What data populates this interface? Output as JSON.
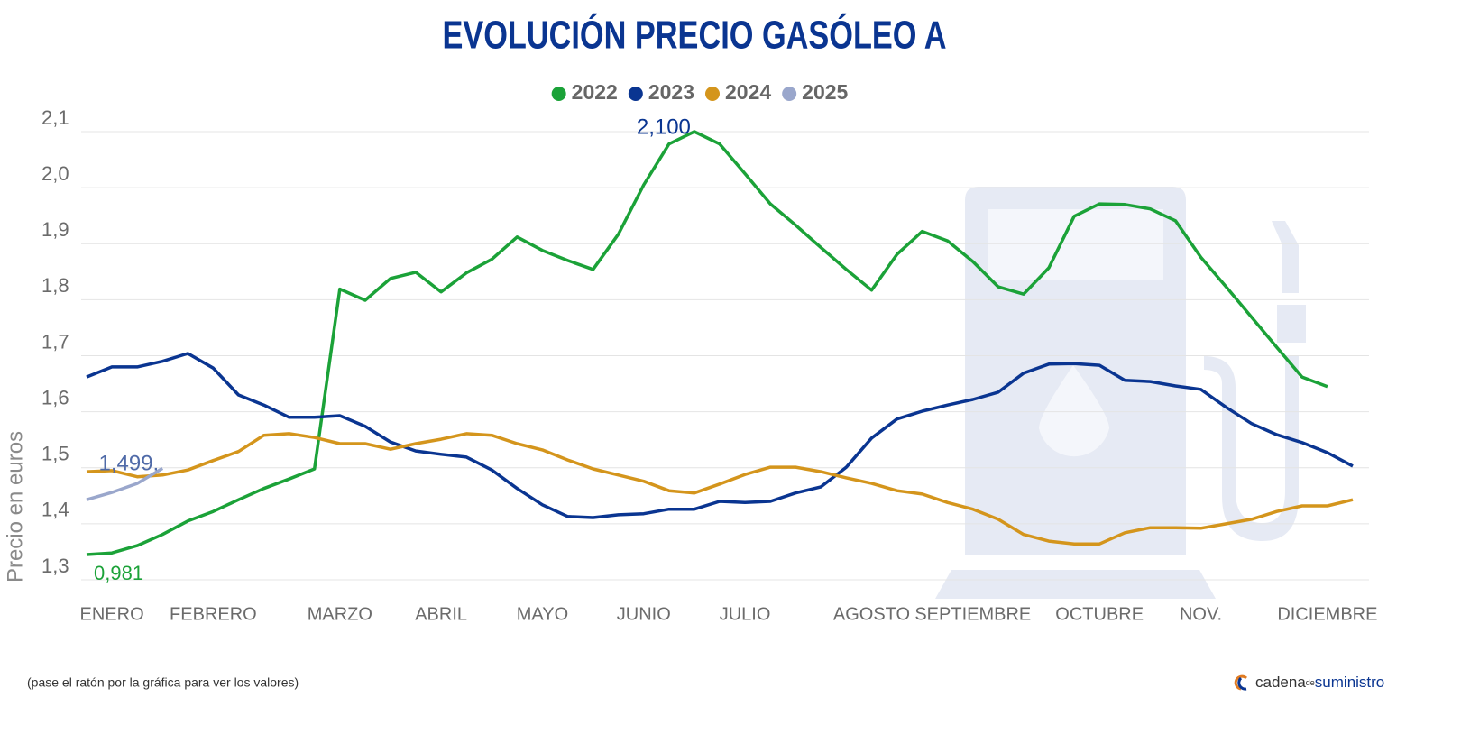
{
  "chart_data": {
    "type": "line",
    "title": "EVOLUCIÓN PRECIO GASÓLEO A",
    "y_label": "Precio en euros",
    "footnote": "(pase el ratón por la gráfica para ver los valores)",
    "brand": [
      "cadena",
      "de",
      "suministro"
    ],
    "notes": [
      "0,981"
    ],
    "categories": [
      null,
      "ENERO",
      null,
      null,
      null,
      "FEBRERO",
      null,
      null,
      null,
      null,
      "MARZO",
      null,
      null,
      null,
      "ABRIL",
      null,
      null,
      null,
      "MAYO",
      null,
      null,
      null,
      "JUNIO",
      null,
      null,
      null,
      "JULIO",
      null,
      null,
      null,
      null,
      "AGOSTO",
      null,
      null,
      null,
      "SEPTIEMBRE",
      null,
      null,
      null,
      null,
      "OCTUBRE",
      null,
      null,
      null,
      "NOV.",
      null,
      null,
      null,
      null,
      "DICIEMBRE",
      null
    ],
    "ylim": [
      1.3,
      2.1
    ],
    "yticks": [
      {
        "value": 1.3,
        "label": "1,3"
      },
      {
        "value": 1.4,
        "label": "1,4"
      },
      {
        "value": 1.5,
        "label": "1,5"
      },
      {
        "value": 1.6,
        "label": "1,6"
      },
      {
        "value": 1.7,
        "label": "1,7"
      },
      {
        "value": 1.8,
        "label": "1,8"
      },
      {
        "value": 1.9,
        "label": "1,9"
      },
      {
        "value": 2.0,
        "label": "2,0"
      },
      {
        "value": 2.1,
        "label": "2,1"
      }
    ],
    "grid": true,
    "series": [
      {
        "name": "2022",
        "color": "#1ba238",
        "values": [
          1.345,
          1.348,
          1.361,
          1.381,
          1.405,
          1.422,
          1.443,
          1.463,
          1.48,
          1.498,
          1.819,
          1.799,
          1.838,
          1.849,
          1.814,
          1.848,
          1.872,
          1.912,
          1.888,
          1.87,
          1.854,
          1.917,
          2.005,
          2.078,
          2.1,
          2.078,
          2.025,
          1.971,
          1.933,
          1.893,
          1.854,
          1.817,
          1.881,
          1.922,
          1.905,
          1.868,
          1.823,
          1.81,
          1.857,
          1.949,
          1.971,
          1.97,
          1.962,
          1.941,
          1.876,
          1.823,
          1.769,
          1.715,
          1.662,
          1.645,
          null
        ],
        "value_labels": [
          null,
          null,
          null,
          null,
          null,
          null,
          null,
          null,
          null,
          null,
          null,
          null,
          null,
          null,
          null,
          null,
          null,
          null,
          null,
          null,
          null,
          null,
          null,
          null,
          "2,100",
          null,
          null,
          null,
          null,
          null,
          null,
          null,
          null,
          null,
          null,
          null,
          null,
          null,
          null,
          null,
          null,
          null,
          null,
          null,
          null,
          null,
          null,
          null,
          null,
          null,
          null
        ],
        "label_color": "#0a3591"
      },
      {
        "name": "2023",
        "color": "#0a3591",
        "values": [
          1.662,
          1.68,
          1.68,
          1.69,
          1.704,
          1.678,
          1.63,
          1.612,
          1.59,
          1.59,
          1.593,
          1.574,
          1.546,
          1.53,
          1.524,
          1.519,
          1.496,
          1.463,
          1.434,
          1.413,
          1.411,
          1.416,
          1.418,
          1.426,
          1.426,
          1.44,
          1.438,
          1.44,
          1.455,
          1.466,
          1.501,
          1.553,
          1.587,
          1.601,
          1.612,
          1.622,
          1.635,
          1.669,
          1.685,
          1.686,
          1.683,
          1.656,
          1.654,
          1.646,
          1.64,
          1.608,
          1.579,
          1.559,
          1.545,
          1.527,
          1.503
        ]
      },
      {
        "name": "2024",
        "color": "#d4951c",
        "values": [
          1.493,
          1.495,
          1.484,
          1.487,
          1.496,
          1.513,
          1.529,
          1.558,
          1.561,
          1.554,
          1.543,
          1.543,
          1.533,
          1.543,
          1.551,
          1.561,
          1.558,
          1.543,
          1.532,
          1.514,
          1.498,
          1.487,
          1.476,
          1.459,
          1.455,
          1.471,
          1.488,
          1.501,
          1.501,
          1.493,
          1.482,
          1.472,
          1.459,
          1.453,
          1.438,
          1.426,
          1.408,
          1.381,
          1.369,
          1.364,
          1.364,
          1.384,
          1.393,
          1.393,
          1.392,
          1.4,
          1.408,
          1.422,
          1.432,
          1.432,
          1.443
        ]
      },
      {
        "name": "2025",
        "color": "#9aa7cc",
        "values": [
          1.443,
          1.456,
          1.472,
          1.499,
          null,
          null,
          null,
          null,
          null,
          null,
          null,
          null,
          null,
          null,
          null,
          null,
          null,
          null,
          null,
          null,
          null,
          null,
          null,
          null,
          null,
          null,
          null,
          null,
          null,
          null,
          null,
          null,
          null,
          null,
          null,
          null,
          null,
          null,
          null,
          null,
          null,
          null,
          null,
          null,
          null,
          null,
          null,
          null,
          null,
          null,
          null
        ],
        "value_labels": [
          "",
          "",
          "",
          "1,499.",
          null,
          null,
          null,
          null,
          null,
          null,
          null,
          null,
          null,
          null,
          null,
          null,
          null,
          null,
          null,
          null,
          null,
          null,
          null,
          null,
          null,
          null,
          null,
          null,
          null,
          null,
          null,
          null,
          null,
          null,
          null,
          null,
          null,
          null,
          null,
          null,
          null,
          null,
          null,
          null,
          null,
          null,
          null,
          null,
          null,
          null,
          null
        ],
        "label_color": "#4f6aa8"
      }
    ]
  }
}
